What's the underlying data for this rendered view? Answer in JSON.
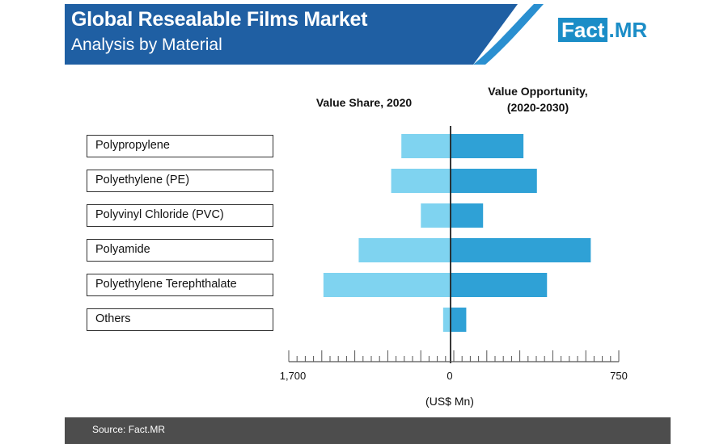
{
  "header": {
    "title": "Global Resealable Films Market",
    "subtitle": "Analysis by Material",
    "logo_part1": "Fact",
    "logo_part2": ".MR"
  },
  "colors": {
    "header_blue": "#1f5fa3",
    "logo_blue": "#1b8dc7",
    "left_bar": "#7fd3f0",
    "right_bar": "#2fa1d6",
    "footer": "#4d4d4d"
  },
  "footer": {
    "source": "Source: Fact.MR"
  },
  "chart_data": {
    "type": "bar",
    "orientation": "horizontal-diverging",
    "categories": [
      "Polypropylene",
      "Polyethylene (PE)",
      "Polyvinyl Chloride (PVC)",
      "Polyamide",
      "Polyethylene Terephthalate",
      "Others"
    ],
    "series": [
      {
        "name": "Value Share, 2020",
        "values": [
          530,
          640,
          320,
          990,
          1370,
          80
        ]
      },
      {
        "name": "Value Opportunity,\n(2020-2030)",
        "values": [
          325,
          385,
          145,
          625,
          430,
          70
        ]
      }
    ],
    "left_axis": {
      "max": 1700,
      "tick_labels": [
        "1,700",
        "0"
      ]
    },
    "right_axis": {
      "max": 750,
      "tick_labels": [
        "0",
        "750"
      ]
    },
    "xlabel": "(US$ Mn)"
  }
}
